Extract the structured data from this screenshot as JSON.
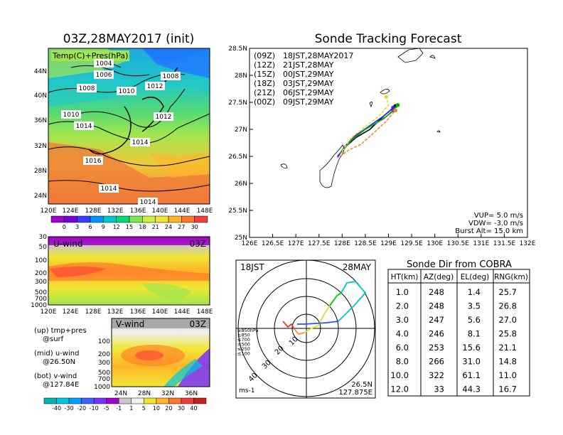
{
  "left": {
    "title": "03Z,28MAY2017 (init)",
    "map_label": "Temp(C)+Pres(hPa)",
    "map_lat_ticks": [
      "44N",
      "40N",
      "36N",
      "32N",
      "28N",
      "24N"
    ],
    "map_lon_ticks": [
      "120E",
      "124E",
      "128E",
      "132E",
      "136E",
      "140E",
      "144E",
      "148E"
    ],
    "isobar_labels": [
      "1004",
      "1006",
      "1008",
      "1008",
      "1010",
      "1012",
      "1010",
      "1012",
      "1014",
      "1014",
      "1016",
      "1014",
      "1014"
    ],
    "temp_scale": [
      "0",
      "3",
      "6",
      "9",
      "12",
      "15",
      "18",
      "21",
      "24",
      "27",
      "30"
    ],
    "temp_colors": [
      "#a000c8",
      "#7800dc",
      "#3c3cff",
      "#0096ff",
      "#00c8c8",
      "#00dc78",
      "#78e650",
      "#c8f03c",
      "#f0e632",
      "#ffb428",
      "#ff7828",
      "#f04040"
    ],
    "uwind_label": "U-wind",
    "uwind_time": "03Z",
    "pressure_ticks": [
      "30",
      "50",
      "100",
      "200",
      "300",
      "500",
      "700",
      "1000"
    ],
    "uwind_lon_ticks": [
      "120E",
      "124E",
      "128E",
      "132E",
      "136E",
      "140E",
      "144E",
      "148E"
    ],
    "vwind_label": "V-wind",
    "vwind_time": "03Z",
    "vwind_pressure_ticks": [
      "100",
      "200",
      "300",
      "500",
      "700",
      "1000"
    ],
    "vwind_lat_ticks": [
      "24N",
      "28N",
      "32N",
      "36N"
    ],
    "legend_lines": [
      "(up) tmp+pres",
      "@surf",
      "(mid) u-wind",
      "@26.50N",
      "(bot) v-wind",
      "@127.84E"
    ],
    "wind_scale": [
      "-40",
      "-30",
      "-20",
      "-10",
      "-5",
      "-1",
      "1",
      "5",
      "10",
      "20",
      "30",
      "40"
    ],
    "wind_colors": [
      "#00b4b4",
      "#00c8dc",
      "#00a0ff",
      "#3c64ff",
      "#7832ff",
      "#a000c8",
      "#c8c8c8",
      "#f0f0f0",
      "#f0e632",
      "#ffb428",
      "#ff7828",
      "#f03c3c",
      "#c81e1e"
    ]
  },
  "tracking": {
    "title": "Sonde Tracking Forecast",
    "legend": [
      {
        "code": "(09Z)",
        "time": "18JST,28MAY2017",
        "color": "#000000"
      },
      {
        "code": "(12Z)",
        "time": "21JST,28MAY",
        "color": "#a000c8"
      },
      {
        "code": "(15Z)",
        "time": "00JST,29MAY",
        "color": "#2828ff"
      },
      {
        "code": "(18Z)",
        "time": "03JST,29MAY",
        "color": "#00b400"
      },
      {
        "code": "(21Z)",
        "time": "06JST,29MAY",
        "color": "#e6dc32"
      },
      {
        "code": "(00Z)",
        "time": "09JST,29MAY",
        "color": "#f08c28"
      }
    ],
    "lat_ticks": [
      "28.5N",
      "28N",
      "27.5N",
      "27N",
      "26.5N",
      "26N",
      "25.5N",
      "25N"
    ],
    "lon_ticks": [
      "126E",
      "126.5E",
      "127E",
      "127.5E",
      "128E",
      "128.5E",
      "129E",
      "129.5E",
      "130E",
      "130.5E",
      "131E",
      "131.5E",
      "132E"
    ],
    "params": [
      "VUP=  5.0 m/s",
      "VDW= -3.0 m/s",
      "Burst Alt= 15.0 km"
    ]
  },
  "polar": {
    "time": "18JST",
    "date": "28MAY",
    "ring_labels": [
      "10",
      "20",
      "30",
      "40"
    ],
    "level_legend": [
      {
        "label": "≥850hPa",
        "color": "#ff3030"
      },
      {
        "label": "≤850",
        "color": "#ff9030"
      },
      {
        "label": "≤700",
        "color": "#e6dc32"
      },
      {
        "label": "≤500",
        "color": "#00c800"
      },
      {
        "label": "≤250",
        "color": "#00c8c8"
      },
      {
        "label": "≤100",
        "color": "#2850ff"
      }
    ],
    "unit": "ms-1",
    "lat": "26.5N",
    "lon": "127.875E"
  },
  "cobra": {
    "title": "Sonde Dir from COBRA",
    "headers": [
      "HT(km)",
      "AZ(deg)",
      "EL(deg)",
      "RNG(km)"
    ],
    "rows": [
      [
        "1.0",
        "248",
        "1.4",
        "25.7"
      ],
      [
        "2.0",
        "248",
        "3.5",
        "26.8"
      ],
      [
        "3.0",
        "247",
        "5.6",
        "27.0"
      ],
      [
        "4.0",
        "246",
        "8.1",
        "25.8"
      ],
      [
        "6.0",
        "253",
        "15.6",
        "21.1"
      ],
      [
        "8.0",
        "266",
        "31.0",
        "14.8"
      ],
      [
        "10.0",
        "322",
        "61.1",
        "11.0"
      ],
      [
        "12.0",
        "33",
        "44.3",
        "16.7"
      ]
    ]
  },
  "chart_data": [
    {
      "type": "line",
      "title": "Sonde Tracking Forecast",
      "xlim": [
        126,
        132
      ],
      "ylim": [
        25,
        28.5
      ],
      "series": [
        {
          "name": "(09Z) 18JST,28MAY2017",
          "x": [
            127.9,
            128.1,
            128.3,
            128.6,
            128.9,
            129.15
          ],
          "y": [
            26.5,
            26.7,
            26.85,
            27.0,
            27.25,
            27.43
          ]
        },
        {
          "name": "(12Z) 21JST,28MAY",
          "x": [
            127.9,
            128.05,
            128.3,
            128.6,
            128.9,
            129.1
          ],
          "y": [
            26.48,
            26.68,
            26.9,
            27.05,
            27.2,
            27.35
          ]
        },
        {
          "name": "(15Z) 00JST,29MAY",
          "x": [
            127.9,
            128.1,
            128.35,
            128.6,
            128.9,
            129.1
          ],
          "y": [
            26.5,
            26.72,
            26.92,
            27.07,
            27.25,
            27.4
          ]
        },
        {
          "name": "(18Z) 03JST,29MAY",
          "x": [
            127.95,
            128.2,
            128.5,
            128.8,
            129.05,
            129.2
          ],
          "y": [
            26.55,
            26.8,
            27.0,
            27.15,
            27.3,
            27.45
          ]
        },
        {
          "name": "(21Z) 06JST,29MAY",
          "x": [
            128.0,
            128.2,
            128.5,
            128.8,
            129.0,
            128.95
          ],
          "y": [
            26.6,
            26.85,
            27.05,
            27.25,
            27.45,
            27.6
          ]
        },
        {
          "name": "(00Z) 09JST,29MAY",
          "x": [
            127.95,
            128.15,
            128.4,
            128.7,
            128.95,
            129.15
          ],
          "y": [
            26.5,
            26.62,
            26.72,
            26.95,
            27.15,
            27.35
          ]
        }
      ]
    },
    {
      "type": "table",
      "title": "Sonde Dir from COBRA",
      "columns": [
        "HT(km)",
        "AZ(deg)",
        "EL(deg)",
        "RNG(km)"
      ],
      "rows": [
        [
          1.0,
          248,
          1.4,
          25.7
        ],
        [
          2.0,
          248,
          3.5,
          26.8
        ],
        [
          3.0,
          247,
          5.6,
          27.0
        ],
        [
          4.0,
          246,
          8.1,
          25.8
        ],
        [
          6.0,
          253,
          15.6,
          21.1
        ],
        [
          8.0,
          266,
          31.0,
          14.8
        ],
        [
          10.0,
          322,
          61.1,
          11.0
        ],
        [
          12.0,
          33,
          44.3,
          16.7
        ]
      ]
    }
  ]
}
